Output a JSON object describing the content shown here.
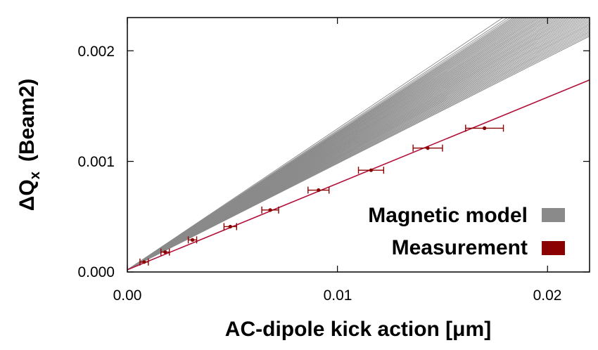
{
  "chart_data": {
    "type": "line",
    "xlabel": "AC-dipole kick action [μm]",
    "ylabel_main": "ΔQ",
    "ylabel_sub": "x",
    "ylabel_paren": "(Beam2)",
    "xlim": [
      0.0,
      0.022
    ],
    "ylim": [
      0.0,
      0.0023
    ],
    "x_ticks": [
      0.0,
      0.01,
      0.02
    ],
    "x_tick_labels": [
      "0.00",
      "0.01",
      "0.02"
    ],
    "y_ticks": [
      0.0,
      0.001,
      0.002
    ],
    "y_tick_labels": [
      "0.000",
      "0.001",
      "0.002"
    ],
    "grid": false,
    "legend_placement": "bottom-right",
    "legend": [
      {
        "label": "Magnetic model",
        "color": "#8a8a8a"
      },
      {
        "label": "Measurement",
        "color": "#8b0000"
      }
    ],
    "model_lines": {
      "name": "Magnetic model",
      "color": "#8a8a8a",
      "intercept": 2e-05,
      "slopes": [
        0.096,
        0.0966,
        0.0972,
        0.0978,
        0.0984,
        0.099,
        0.0996,
        0.1002,
        0.1008,
        0.1014,
        0.102,
        0.1026,
        0.1032,
        0.1038,
        0.1044,
        0.105,
        0.1056,
        0.1062,
        0.1068,
        0.1074,
        0.108,
        0.1086,
        0.1092,
        0.1098,
        0.1104,
        0.111,
        0.1116,
        0.1122,
        0.1128,
        0.1134,
        0.114,
        0.1146,
        0.1152,
        0.1158,
        0.1164,
        0.117,
        0.1176,
        0.1182,
        0.1188,
        0.1194,
        0.12,
        0.1206,
        0.1212,
        0.1218,
        0.1224,
        0.123,
        0.1236,
        0.1242,
        0.125,
        0.126,
        0.1275
      ]
    },
    "fit_line": {
      "name": "Measurement",
      "color": "#b0103a",
      "intercept": 2e-05,
      "slope": 0.078
    },
    "measurement": {
      "name": "Measurement",
      "color": "#8b0000",
      "points": [
        {
          "x": 0.0008,
          "y": 9e-05,
          "xerr": 0.0002
        },
        {
          "x": 0.0018,
          "y": 0.00018,
          "xerr": 0.0002
        },
        {
          "x": 0.0031,
          "y": 0.00029,
          "xerr": 0.0002
        },
        {
          "x": 0.0049,
          "y": 0.00041,
          "xerr": 0.0003
        },
        {
          "x": 0.0068,
          "y": 0.00056,
          "xerr": 0.0004
        },
        {
          "x": 0.0091,
          "y": 0.00074,
          "xerr": 0.0005
        },
        {
          "x": 0.0116,
          "y": 0.00092,
          "xerr": 0.0006
        },
        {
          "x": 0.0143,
          "y": 0.00112,
          "xerr": 0.0007
        },
        {
          "x": 0.017,
          "y": 0.0013,
          "xerr": 0.0009
        }
      ]
    }
  }
}
